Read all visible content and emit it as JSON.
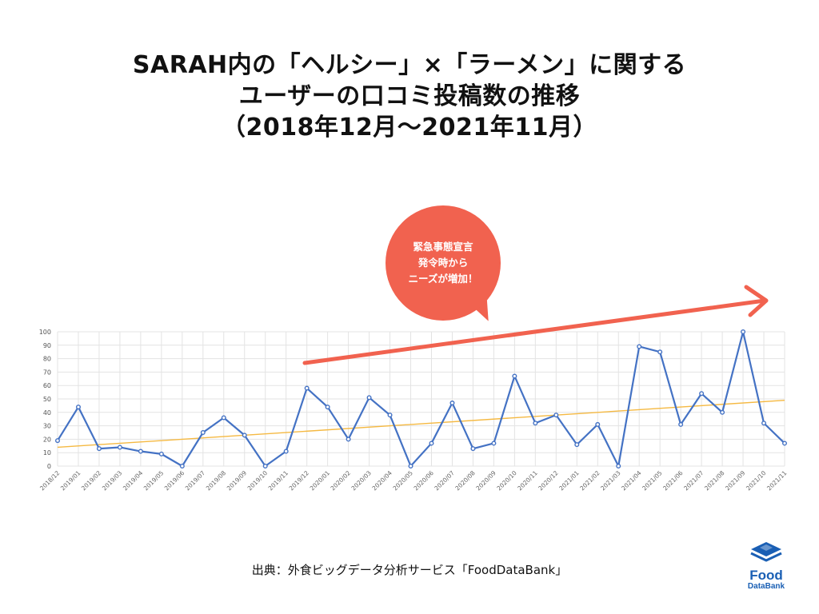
{
  "title": {
    "line1": "SARAH内の「ヘルシー」×「ラーメン」に関する",
    "line2": "ユーザーの口コミ投稿数の推移",
    "line3": "（2018年12月〜2021年11月）"
  },
  "callout": {
    "line1": "緊急事態宣言",
    "line2": "発令時から",
    "line3": "ニーズが増加！"
  },
  "source": "出典：外食ビッグデータ分析サービス「FoodDataBank」",
  "logo": {
    "word1": "Food",
    "word2": "DataBank",
    "icon": "stacked-layers-icon"
  },
  "colors": {
    "series": "#4472c4",
    "trend": "#f5b942",
    "arrow": "#f1624f",
    "grid": "#e3e3e3",
    "logo": "#1a5fb4"
  },
  "chart_data": {
    "type": "line",
    "title": "",
    "xlabel": "",
    "ylabel": "",
    "ylim": [
      0,
      100
    ],
    "yticks": [
      0,
      10,
      20,
      30,
      40,
      50,
      60,
      70,
      80,
      90,
      100
    ],
    "grid": true,
    "categories": [
      "2018/12",
      "2019/01",
      "2019/02",
      "2019/03",
      "2019/04",
      "2019/05",
      "2019/06",
      "2019/07",
      "2019/08",
      "2019/09",
      "2019/10",
      "2019/11",
      "2019/12",
      "2020/01",
      "2020/02",
      "2020/03",
      "2020/04",
      "2020/05",
      "2020/06",
      "2020/07",
      "2020/08",
      "2020/09",
      "2020/10",
      "2020/11",
      "2020/12",
      "2021/01",
      "2021/02",
      "2021/03",
      "2021/04",
      "2021/05",
      "2021/06",
      "2021/07",
      "2021/08",
      "2021/09",
      "2021/10",
      "2021/11"
    ],
    "series": [
      {
        "values": [
          19,
          44,
          13,
          14,
          11,
          9,
          0,
          25,
          36,
          23,
          0,
          11,
          58,
          44,
          20,
          51,
          38,
          0,
          17,
          47,
          13,
          17,
          67,
          32,
          38,
          16,
          31,
          0,
          89,
          85,
          31,
          54,
          40,
          100,
          32,
          17
        ]
      }
    ],
    "trendline": {
      "start": 14,
      "end": 49
    }
  }
}
